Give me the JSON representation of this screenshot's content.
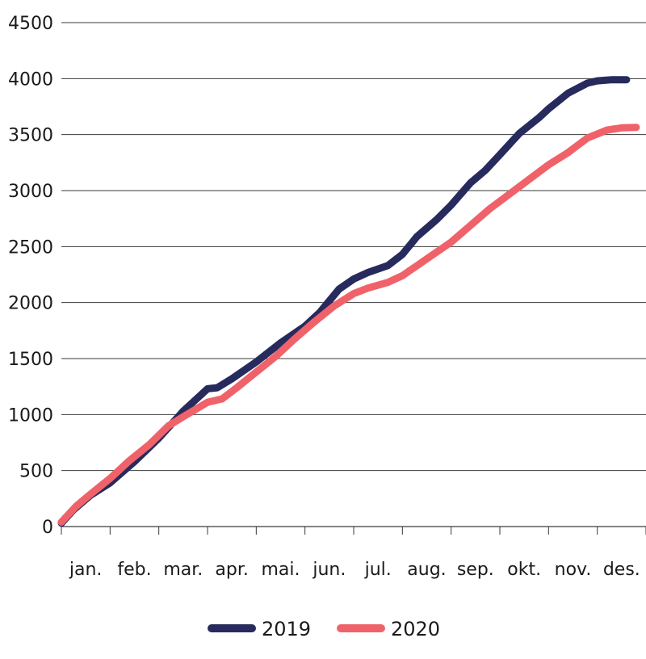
{
  "chart_data": {
    "type": "line",
    "title": "",
    "xlabel": "",
    "ylabel": "",
    "ylim": [
      0,
      4500
    ],
    "yticks": [
      0,
      500,
      1000,
      1500,
      2000,
      2500,
      3000,
      3500,
      4000,
      4500
    ],
    "ytick_labels": [
      "0",
      "500",
      "1000",
      "1500",
      "2000",
      "2500",
      "3000",
      "3500",
      "4000",
      "4500"
    ],
    "xlim": [
      0,
      12
    ],
    "months": [
      "jan.",
      "feb.",
      "mar.",
      "apr.",
      "mai.",
      "jun.",
      "jul.",
      "aug.",
      "sep.",
      "okt.",
      "nov.",
      "des."
    ],
    "grid": "horizontal",
    "legend_position": "bottom",
    "series": [
      {
        "name": "2019",
        "color": "#272a5c",
        "x": [
          0,
          0.25,
          0.6,
          1.0,
          1.5,
          2.0,
          2.5,
          3.0,
          3.2,
          3.5,
          4.0,
          4.5,
          5.0,
          5.3,
          5.7,
          6.0,
          6.3,
          6.7,
          7.0,
          7.3,
          7.7,
          8.0,
          8.4,
          8.7,
          9.0,
          9.4,
          9.8,
          10.0,
          10.4,
          10.8,
          11.0,
          11.3,
          11.6
        ],
        "values": [
          30,
          150,
          280,
          390,
          580,
          790,
          1030,
          1230,
          1240,
          1320,
          1470,
          1640,
          1790,
          1910,
          2120,
          2210,
          2270,
          2330,
          2430,
          2590,
          2740,
          2870,
          3070,
          3180,
          3320,
          3510,
          3650,
          3730,
          3870,
          3960,
          3980,
          3990,
          3990
        ]
      },
      {
        "name": "2020",
        "color": "#f0626a",
        "x": [
          0,
          0.3,
          0.6,
          1.0,
          1.4,
          1.8,
          2.2,
          2.5,
          3.0,
          3.3,
          3.6,
          4.0,
          4.4,
          4.8,
          5.2,
          5.6,
          6.0,
          6.3,
          6.7,
          7.0,
          7.3,
          7.6,
          8.0,
          8.4,
          8.8,
          9.2,
          9.6,
          10.0,
          10.4,
          10.8,
          11.2,
          11.5,
          11.8
        ],
        "values": [
          40,
          180,
          290,
          430,
          590,
          730,
          900,
          980,
          1110,
          1140,
          1240,
          1380,
          1520,
          1680,
          1830,
          1970,
          2080,
          2130,
          2180,
          2240,
          2330,
          2420,
          2540,
          2690,
          2840,
          2970,
          3100,
          3230,
          3340,
          3470,
          3540,
          3560,
          3565
        ]
      }
    ]
  }
}
